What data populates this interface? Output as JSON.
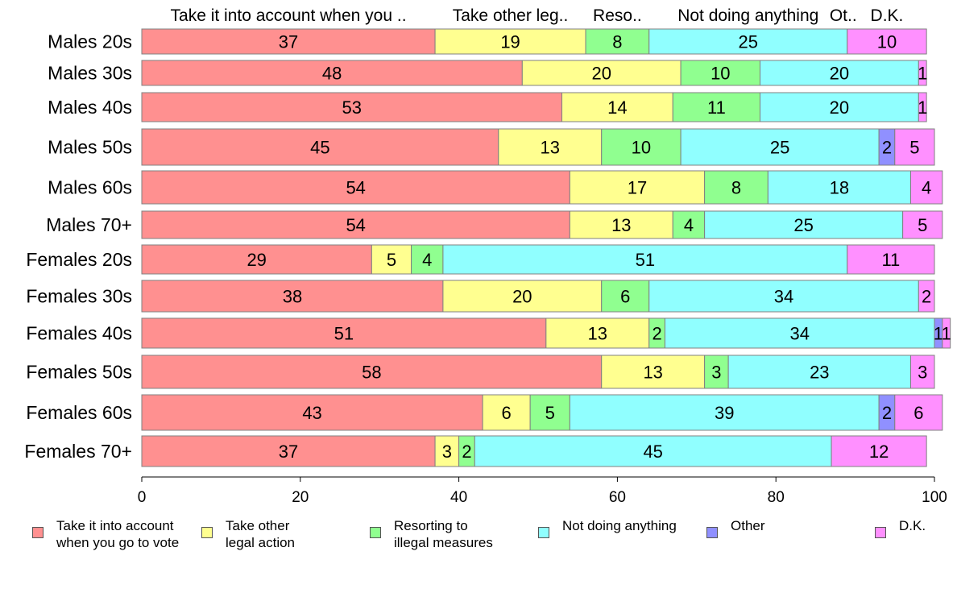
{
  "chart_data": {
    "type": "bar",
    "orientation": "horizontal",
    "stacked": true,
    "categories": [
      "Males 20s",
      "Males 30s",
      "Males 40s",
      "Males 50s",
      "Males 60s",
      "Males 70+",
      "Females 20s",
      "Females 30s",
      "Females 40s",
      "Females 50s",
      "Females 60s",
      "Females 70+"
    ],
    "series": [
      {
        "name": "Take it into account when you go to vote",
        "header": "Take it into account when you ..",
        "color": "#ff9090",
        "values": [
          37,
          48,
          53,
          45,
          54,
          54,
          29,
          38,
          51,
          58,
          43,
          37
        ]
      },
      {
        "name": "Take other legal action",
        "header": "Take other leg..",
        "color": "#ffff90",
        "values": [
          19,
          20,
          14,
          13,
          17,
          13,
          5,
          20,
          13,
          13,
          6,
          3
        ]
      },
      {
        "name": "Resorting to illegal measures",
        "header": "Reso..",
        "color": "#90ff90",
        "values": [
          8,
          10,
          11,
          10,
          8,
          4,
          4,
          6,
          2,
          3,
          5,
          2
        ]
      },
      {
        "name": "Not doing anything",
        "header": "Not doing anything",
        "color": "#90ffff",
        "values": [
          25,
          20,
          20,
          25,
          18,
          25,
          51,
          34,
          34,
          23,
          39,
          45
        ]
      },
      {
        "name": "Other",
        "header": "Ot..",
        "color": "#9090ff",
        "values": [
          0,
          0,
          0,
          2,
          0,
          0,
          0,
          0,
          1,
          0,
          2,
          0
        ]
      },
      {
        "name": "D.K.",
        "header": "D.K.",
        "color": "#ff90ff",
        "values": [
          10,
          1,
          1,
          5,
          4,
          5,
          11,
          2,
          1,
          3,
          6,
          12
        ]
      }
    ],
    "xlim": [
      0,
      100
    ],
    "xticks": [
      0,
      20,
      40,
      60,
      80,
      100
    ],
    "legend_position": "bottom",
    "grid": false
  },
  "legend": [
    {
      "text": "Take it into account\nwhen you go to vote",
      "color": "#ff9090",
      "icon": "legend-swatch"
    },
    {
      "text": "Take other\nlegal action",
      "color": "#ffff90",
      "icon": "legend-swatch"
    },
    {
      "text": "Resorting to\nillegal measures",
      "color": "#90ff90",
      "icon": "legend-swatch"
    },
    {
      "text": "Not doing anything",
      "color": "#90ffff",
      "icon": "legend-swatch"
    },
    {
      "text": "Other",
      "color": "#9090ff",
      "icon": "legend-swatch"
    },
    {
      "text": "D.K.",
      "color": "#ff90ff",
      "icon": "legend-swatch"
    }
  ]
}
